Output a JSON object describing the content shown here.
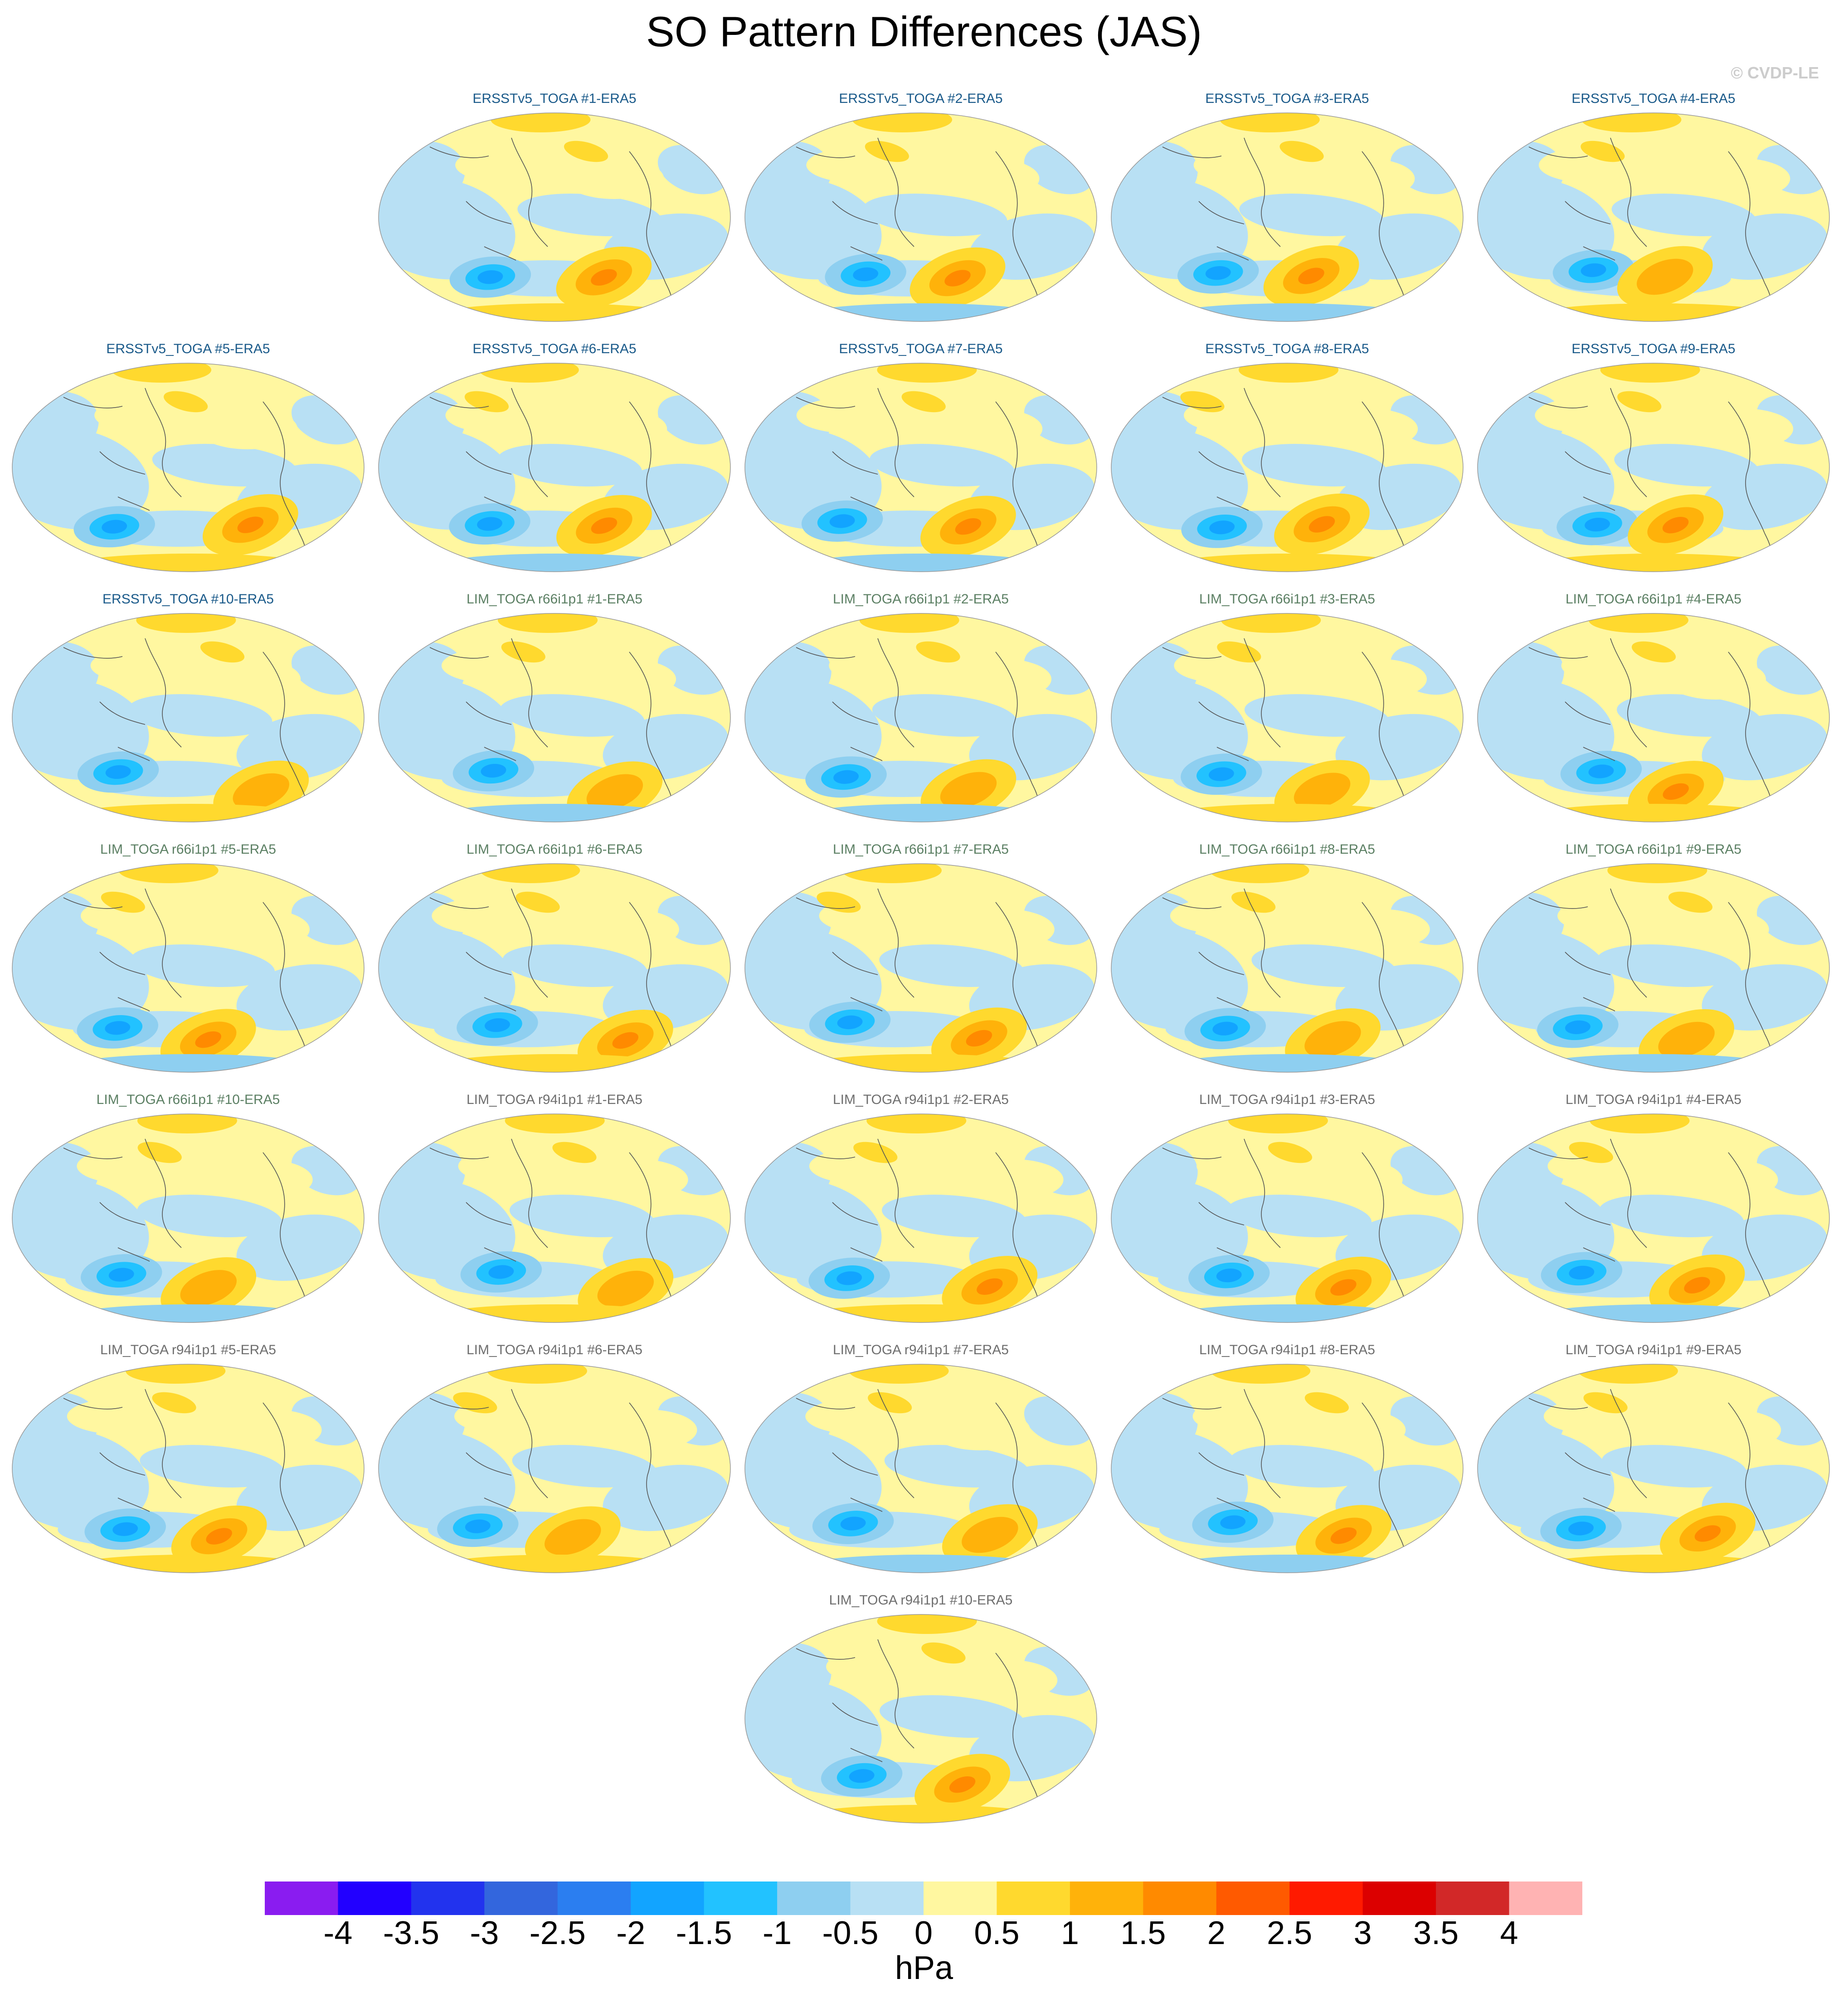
{
  "title": "SO Pattern Differences (JAS)",
  "watermark": "© CVDP-LE",
  "colors": {
    "ersst_title": "#1a5a8a",
    "lim_title": "#5b7f63",
    "lim_r94_title": "#6e6e6e",
    "coast": "#555555"
  },
  "panels": [
    {
      "label": "ERSSTv5_TOGA #1-ERA5",
      "group": "ersst"
    },
    {
      "label": "ERSSTv5_TOGA #2-ERA5",
      "group": "ersst"
    },
    {
      "label": "ERSSTv5_TOGA #3-ERA5",
      "group": "ersst"
    },
    {
      "label": "ERSSTv5_TOGA #4-ERA5",
      "group": "ersst"
    },
    {
      "label": "ERSSTv5_TOGA #5-ERA5",
      "group": "ersst"
    },
    {
      "label": "ERSSTv5_TOGA #6-ERA5",
      "group": "ersst"
    },
    {
      "label": "ERSSTv5_TOGA #7-ERA5",
      "group": "ersst"
    },
    {
      "label": "ERSSTv5_TOGA #8-ERA5",
      "group": "ersst"
    },
    {
      "label": "ERSSTv5_TOGA #9-ERA5",
      "group": "ersst"
    },
    {
      "label": "ERSSTv5_TOGA #10-ERA5",
      "group": "ersst"
    },
    {
      "label": "LIM_TOGA r66i1p1 #1-ERA5",
      "group": "lim"
    },
    {
      "label": "LIM_TOGA r66i1p1 #2-ERA5",
      "group": "lim"
    },
    {
      "label": "LIM_TOGA r66i1p1 #3-ERA5",
      "group": "lim"
    },
    {
      "label": "LIM_TOGA r66i1p1 #4-ERA5",
      "group": "lim"
    },
    {
      "label": "LIM_TOGA r66i1p1 #5-ERA5",
      "group": "lim"
    },
    {
      "label": "LIM_TOGA r66i1p1 #6-ERA5",
      "group": "lim"
    },
    {
      "label": "LIM_TOGA r66i1p1 #7-ERA5",
      "group": "lim"
    },
    {
      "label": "LIM_TOGA r66i1p1 #8-ERA5",
      "group": "lim"
    },
    {
      "label": "LIM_TOGA r66i1p1 #9-ERA5",
      "group": "lim"
    },
    {
      "label": "LIM_TOGA r66i1p1 #10-ERA5",
      "group": "lim"
    },
    {
      "label": "LIM_TOGA r94i1p1 #1-ERA5",
      "group": "lim_r94"
    },
    {
      "label": "LIM_TOGA r94i1p1 #2-ERA5",
      "group": "lim_r94"
    },
    {
      "label": "LIM_TOGA r94i1p1 #3-ERA5",
      "group": "lim_r94"
    },
    {
      "label": "LIM_TOGA r94i1p1 #4-ERA5",
      "group": "lim_r94"
    },
    {
      "label": "LIM_TOGA r94i1p1 #5-ERA5",
      "group": "lim_r94"
    },
    {
      "label": "LIM_TOGA r94i1p1 #6-ERA5",
      "group": "lim_r94"
    },
    {
      "label": "LIM_TOGA r94i1p1 #7-ERA5",
      "group": "lim_r94"
    },
    {
      "label": "LIM_TOGA r94i1p1 #8-ERA5",
      "group": "lim_r94"
    },
    {
      "label": "LIM_TOGA r94i1p1 #9-ERA5",
      "group": "lim_r94"
    },
    {
      "label": "LIM_TOGA r94i1p1 #10-ERA5",
      "group": "lim_r94"
    }
  ],
  "colorbar": {
    "units": "hPa",
    "tick_labels": [
      "-4",
      "-3.5",
      "-3",
      "-2.5",
      "-2",
      "-1.5",
      "-1",
      "-0.5",
      "0",
      "0.5",
      "1",
      "1.5",
      "2",
      "2.5",
      "3",
      "3.5",
      "4"
    ],
    "colors": [
      "#8a1cf0",
      "#2200ff",
      "#2233ee",
      "#3366dd",
      "#2b7ef0",
      "#12a4ff",
      "#22c2ff",
      "#8ecff0",
      "#b8e0f4",
      "#fff7a0",
      "#ffd92e",
      "#ffb20a",
      "#ff8a00",
      "#ff5a00",
      "#ff1a00",
      "#dc0000",
      "#d22828",
      "#ffb3b3"
    ]
  }
}
